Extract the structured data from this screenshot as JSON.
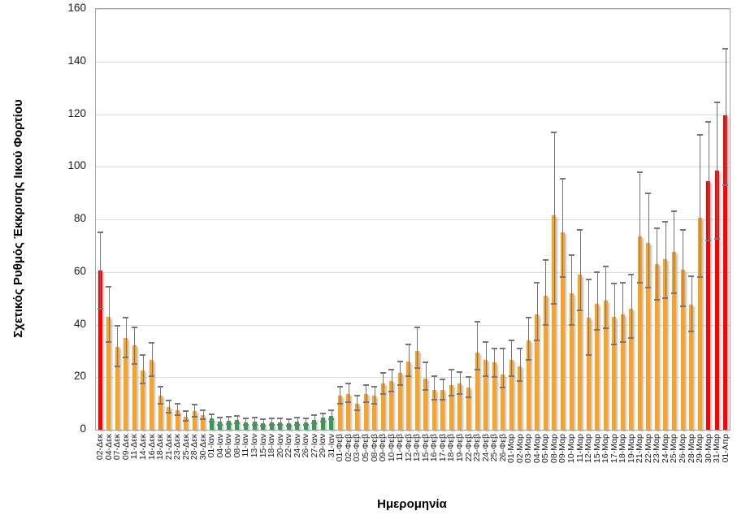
{
  "chart_data": {
    "type": "bar",
    "title": "",
    "xlabel": "Ημερομηνία",
    "ylabel": "Σχετικός Ρυθμός Έκκρισης Ιικού Φορτίου",
    "ylim": [
      0,
      160
    ],
    "ytick_step": 20,
    "grid": true,
    "legend_position": "none",
    "error_bars": true,
    "palette": {
      "red": "#fe0000",
      "orange": "#fba224",
      "green": "#2aa44a",
      "error_bar": "#767676",
      "gridline": "#dcdcdc",
      "plot_border": "#a6a6a6"
    },
    "categories": [
      "02-Δεκ",
      "04-Δεκ",
      "07-Δεκ",
      "09-Δεκ",
      "11-Δεκ",
      "14-Δεκ",
      "16-Δεκ",
      "18-Δεκ",
      "21-Δεκ",
      "23-Δεκ",
      "25-Δεκ",
      "28-Δεκ",
      "30-Δεκ",
      "01-Ιαν",
      "04-Ιαν",
      "06-Ιαν",
      "08-Ιαν",
      "11-Ιαν",
      "13-Ιαν",
      "15-Ιαν",
      "18-Ιαν",
      "20-Ιαν",
      "22-Ιαν",
      "24-Ιαν",
      "26-Ιαν",
      "27-Ιαν",
      "29-Ιαν",
      "31-Ιαν",
      "01-Φεβ",
      "02-Φεβ",
      "03-Φεβ",
      "05-Φεβ",
      "08-Φεβ",
      "09-Φεβ",
      "10-Φεβ",
      "11-Φεβ",
      "12-Φεβ",
      "13-Φεβ",
      "15-Φεβ",
      "16-Φεβ",
      "17-Φεβ",
      "18-Φεβ",
      "19-Φεβ",
      "22-Φεβ",
      "23-Φεβ",
      "24-Φεβ",
      "25-Φεβ",
      "26-Φεβ",
      "01-Μαρ",
      "02-Μαρ",
      "03-Μαρ",
      "04-Μαρ",
      "05-Μαρ",
      "08-Μαρ",
      "09-Μαρ",
      "10-Μαρ",
      "11-Μαρ",
      "12-Μαρ",
      "15-Μαρ",
      "16-Μαρ",
      "17-Μαρ",
      "18-Μαρ",
      "19-Μαρ",
      "21-Μαρ",
      "22-Μαρ",
      "23-Μαρ",
      "24-Μαρ",
      "25-Μαρ",
      "26-Μαρ",
      "28-Μαρ",
      "29-Μαρ",
      "30-Μαρ",
      "31-Μαρ",
      "01-Απρ"
    ],
    "values": [
      60.5,
      43,
      31.5,
      35,
      32,
      22.5,
      26.5,
      13,
      8.5,
      7.5,
      5,
      7,
      5.5,
      4.3,
      3,
      3.3,
      3.7,
      2.7,
      3,
      2.5,
      2.8,
      2.8,
      2.5,
      3,
      2.8,
      3.7,
      4.5,
      5.3,
      13,
      13.5,
      10,
      13.5,
      13,
      17.5,
      18.5,
      21.5,
      26,
      30,
      19.5,
      15,
      15,
      17,
      17.5,
      16,
      29.5,
      26.5,
      25.5,
      21,
      26.5,
      24,
      34,
      44,
      51,
      81.5,
      75,
      52,
      59,
      42.5,
      48,
      49,
      43,
      44,
      46,
      73.5,
      71,
      63,
      65,
      67.5,
      61,
      47.5,
      80.5,
      94.5,
      98.5,
      119.5
    ],
    "err_low": [
      46,
      33.5,
      24,
      27.5,
      25,
      17.5,
      20.5,
      10,
      6.5,
      5.5,
      3.5,
      5,
      4,
      3.1,
      2,
      2.2,
      2.5,
      1.8,
      2,
      1.6,
      1.9,
      1.9,
      1.6,
      2,
      1.9,
      2.5,
      3.2,
      3.9,
      10,
      10.5,
      7.5,
      10.5,
      10,
      13.5,
      14.5,
      17,
      20.5,
      23.5,
      15,
      11.5,
      11.5,
      13,
      13.5,
      12.5,
      23,
      20.5,
      20,
      16,
      20.5,
      18.5,
      26.5,
      34,
      40,
      48,
      58,
      40,
      45.5,
      28.5,
      38,
      38.5,
      32.5,
      33.5,
      35,
      56,
      54,
      49.5,
      50,
      52,
      47,
      37.5,
      58,
      72,
      72.5,
      93
    ],
    "err_high": [
      75,
      54.5,
      39.5,
      42.5,
      39,
      28.5,
      33,
      16.5,
      11,
      10,
      7,
      9.5,
      7.5,
      6,
      4.5,
      4.9,
      5.3,
      4.2,
      4.5,
      4,
      4.3,
      4.3,
      4,
      4.5,
      4.3,
      5.5,
      6.3,
      7.3,
      16.5,
      17.5,
      13,
      17,
      16.5,
      21.5,
      23,
      26,
      32.5,
      39,
      25.5,
      20.5,
      19,
      23,
      22,
      20,
      41,
      33.5,
      31,
      31,
      34,
      31,
      42.5,
      56,
      64.5,
      113,
      95.5,
      66.5,
      76,
      57,
      60,
      62,
      55.5,
      56,
      59,
      98,
      90,
      76.5,
      79,
      83,
      76,
      58.5,
      112,
      117,
      124.5,
      145
    ],
    "bar_colors": [
      "red",
      "orange",
      "orange",
      "orange",
      "orange",
      "orange",
      "orange",
      "orange",
      "orange",
      "orange",
      "orange",
      "orange",
      "orange",
      "green",
      "green",
      "green",
      "green",
      "green",
      "green",
      "green",
      "green",
      "green",
      "green",
      "green",
      "green",
      "green",
      "green",
      "green",
      "orange",
      "orange",
      "orange",
      "orange",
      "orange",
      "orange",
      "orange",
      "orange",
      "orange",
      "orange",
      "orange",
      "orange",
      "orange",
      "orange",
      "orange",
      "orange",
      "orange",
      "orange",
      "orange",
      "orange",
      "orange",
      "orange",
      "orange",
      "orange",
      "orange",
      "orange",
      "orange",
      "orange",
      "orange",
      "orange",
      "orange",
      "orange",
      "orange",
      "orange",
      "orange",
      "orange",
      "orange",
      "orange",
      "orange",
      "orange",
      "orange",
      "orange",
      "orange",
      "red",
      "red",
      "red"
    ]
  }
}
